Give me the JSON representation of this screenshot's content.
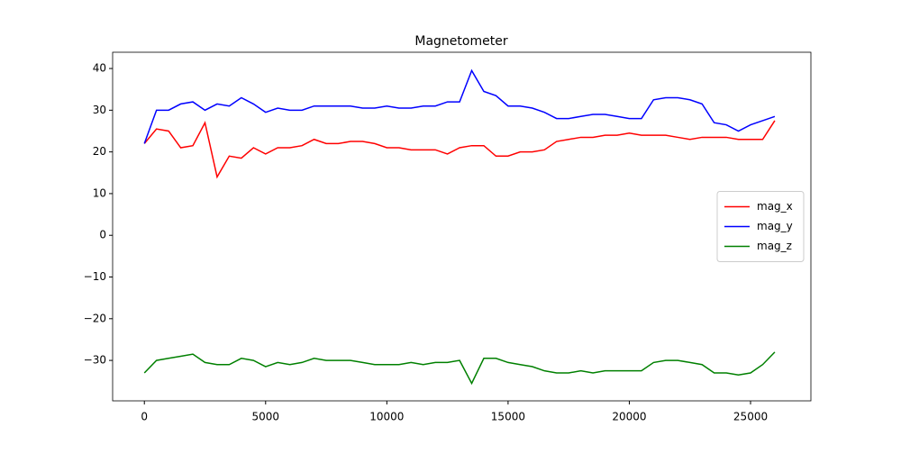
{
  "chart_data": {
    "type": "line",
    "title": "Magnetometer",
    "x": [
      0,
      500,
      1000,
      1500,
      2000,
      2500,
      3000,
      3500,
      4000,
      4500,
      5000,
      5500,
      6000,
      6500,
      7000,
      7500,
      8000,
      8500,
      9000,
      9500,
      10000,
      10500,
      11000,
      11500,
      12000,
      12500,
      13000,
      13500,
      14000,
      14500,
      15000,
      15500,
      16000,
      16500,
      17000,
      17500,
      18000,
      18500,
      19000,
      19500,
      20000,
      20500,
      21000,
      21500,
      22000,
      22500,
      23000,
      23500,
      24000,
      24500,
      25000,
      25500,
      26000
    ],
    "series": [
      {
        "name": "mag_x",
        "color": "#ff0000",
        "values": [
          22,
          25.5,
          25,
          21,
          21.5,
          27,
          14,
          19,
          18.5,
          21,
          19.5,
          21,
          21,
          21.5,
          23,
          22,
          22,
          22.5,
          22.5,
          22,
          21,
          21,
          20.5,
          20.5,
          20.5,
          19.5,
          21,
          21.5,
          21.5,
          19,
          19,
          20,
          20,
          20.5,
          22.5,
          23,
          23.5,
          23.5,
          24,
          24,
          24.5,
          24,
          24,
          24,
          23.5,
          23,
          23.5,
          23.5,
          23.5,
          23,
          23,
          23,
          27.5
        ]
      },
      {
        "name": "mag_y",
        "color": "#0000ff",
        "values": [
          22,
          30,
          30,
          31.5,
          32,
          30,
          31.5,
          31,
          33,
          31.5,
          29.5,
          30.5,
          30,
          30,
          31,
          31,
          31,
          31,
          30.5,
          30.5,
          31,
          30.5,
          30.5,
          31,
          31,
          32,
          32,
          39.5,
          34.5,
          33.5,
          31,
          31,
          30.5,
          29.5,
          28,
          28,
          28.5,
          29,
          29,
          28.5,
          28,
          28,
          32.5,
          33,
          33,
          32.5,
          31.5,
          27,
          26.5,
          25,
          26.5,
          27.5,
          28.5
        ]
      },
      {
        "name": "mag_z",
        "color": "#008000",
        "values": [
          -33,
          -30,
          -29.5,
          -29,
          -28.5,
          -30.5,
          -31,
          -31,
          -29.5,
          -30,
          -31.5,
          -30.5,
          -31,
          -30.5,
          -29.5,
          -30,
          -30,
          -30,
          -30.5,
          -31,
          -31,
          -31,
          -30.5,
          -31,
          -30.5,
          -30.5,
          -30,
          -35.5,
          -29.5,
          -29.5,
          -30.5,
          -31,
          -31.5,
          -32.5,
          -33,
          -33,
          -32.5,
          -33,
          -32.5,
          -32.5,
          -32.5,
          -32.5,
          -30.5,
          -30,
          -30,
          -30.5,
          -31,
          -33,
          -33,
          -33.5,
          -33,
          -31,
          -28
        ]
      }
    ],
    "xlim": [
      -1309,
      27489
    ],
    "ylim": [
      -39.7,
      43.9
    ],
    "xticks": [
      0,
      5000,
      10000,
      15000,
      20000,
      25000
    ],
    "yticks": [
      {
        "value": -30,
        "label": "−30"
      },
      {
        "value": -20,
        "label": "−20"
      },
      {
        "value": -10,
        "label": "−10"
      },
      0,
      10,
      20,
      30,
      40
    ],
    "legend": "center right"
  }
}
